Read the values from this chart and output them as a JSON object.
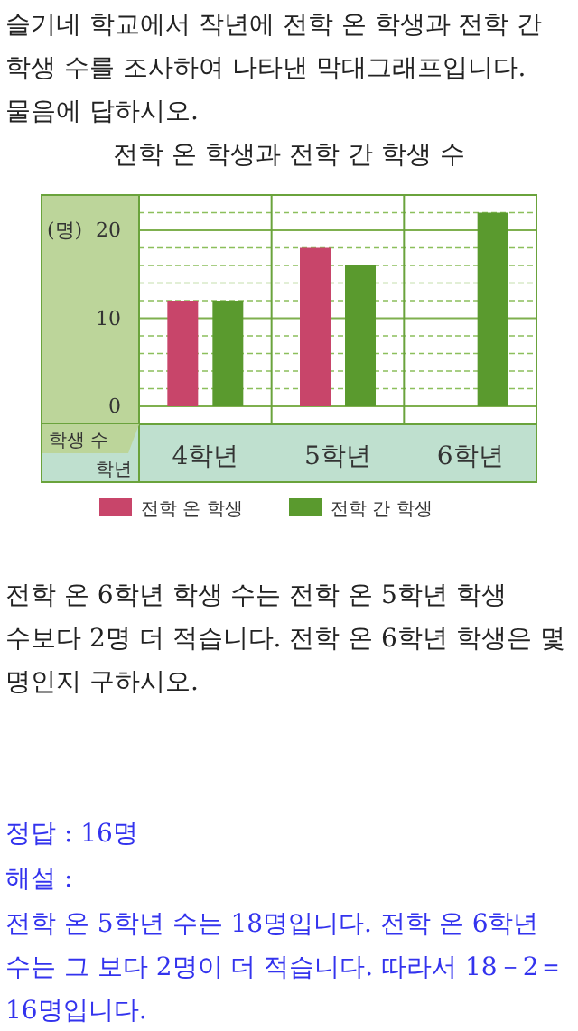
{
  "chart_data": {
    "type": "bar",
    "title": "전학 온 학생과 전학 간 학생 수",
    "xlabel": "학년",
    "ylabel": "학생 수",
    "categories": [
      "4학년",
      "5학년",
      "6학년"
    ],
    "series": [
      {
        "name": "전학 온 학생",
        "color": "#c8456a",
        "values": [
          12,
          18,
          null
        ]
      },
      {
        "name": "전학 간 학생",
        "color": "#5a9a2e",
        "values": [
          12,
          16,
          22
        ]
      }
    ],
    "ylim": [
      0,
      24
    ],
    "yticks": [
      0,
      {
        "value": 2,
        "label": null
      },
      {
        "value": 4,
        "label": null
      },
      {
        "value": 6,
        "label": null
      },
      {
        "value": 8,
        "label": null
      },
      10,
      {
        "value": 12,
        "label": null
      },
      {
        "value": 14,
        "label": null
      },
      {
        "value": 16,
        "label": null
      },
      {
        "value": 18,
        "label": null
      },
      20,
      {
        "value": 22,
        "label": null
      }
    ],
    "grid": "y",
    "legend": "bottom",
    "annotations": [
      "슬기네 학교에서 작년에 전학 온 학생과 전학 간 학생 수를 조사하여 나타낸 막대그래프입니다. 물음에 답하시오.",
      "(명)",
      "전학 온 6학년 학생 수는 전학 온 5학년 학생 수보다 2명 더 적습니다. 전학 온 6학년 학생은 몇 명인지 구하시오.",
      "정답 : 16명",
      "해설 :",
      "전학 온 5학년 수는 18명입니다. 전학 온 6학년 수는 그 보다 2명이 더 적습니다. 따라서 18－2＝16명입니다."
    ]
  }
}
